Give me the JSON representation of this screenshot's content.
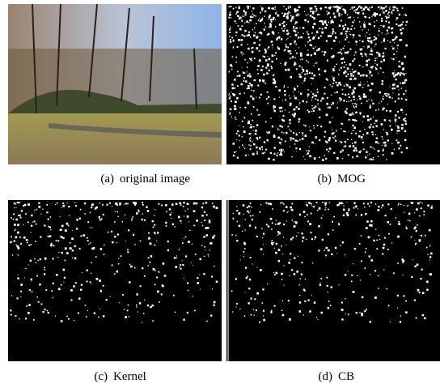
{
  "panels": [
    {
      "label": "(a)",
      "caption": "original image"
    },
    {
      "label": "(b)",
      "caption": "MOG"
    },
    {
      "label": "(c)",
      "caption": "Kernel"
    },
    {
      "label": "(d)",
      "caption": "CB"
    }
  ]
}
